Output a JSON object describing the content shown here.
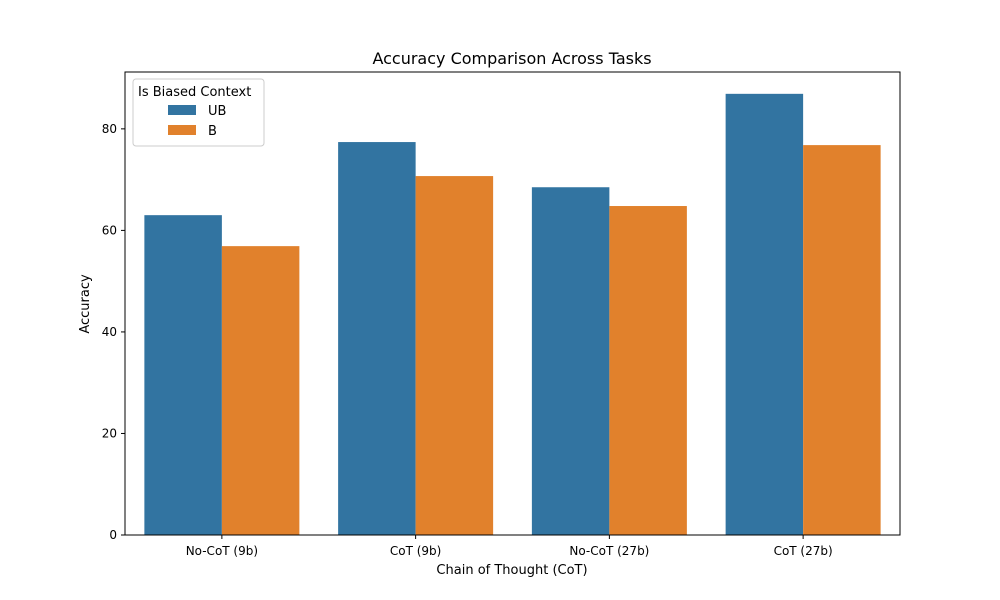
{
  "chart_data": {
    "type": "bar",
    "title": "Accuracy Comparison Across Tasks",
    "xlabel": "Chain of Thought (CoT)",
    "ylabel": "Accuracy",
    "categories": [
      "No-CoT (9b)",
      "CoT (9b)",
      "No-CoT (27b)",
      "CoT (27b)"
    ],
    "series": [
      {
        "name": "UB",
        "color": "#3274a1",
        "values": [
          63.0,
          77.4,
          68.5,
          86.9
        ]
      },
      {
        "name": "B",
        "color": "#e1812c",
        "values": [
          56.9,
          70.7,
          64.8,
          76.8
        ]
      }
    ],
    "ylim": [
      0,
      91.2
    ],
    "yticks": [
      0,
      20,
      40,
      60,
      80
    ],
    "grid": false,
    "legend": {
      "title": "Is Biased Context",
      "placement": "top-left"
    }
  }
}
